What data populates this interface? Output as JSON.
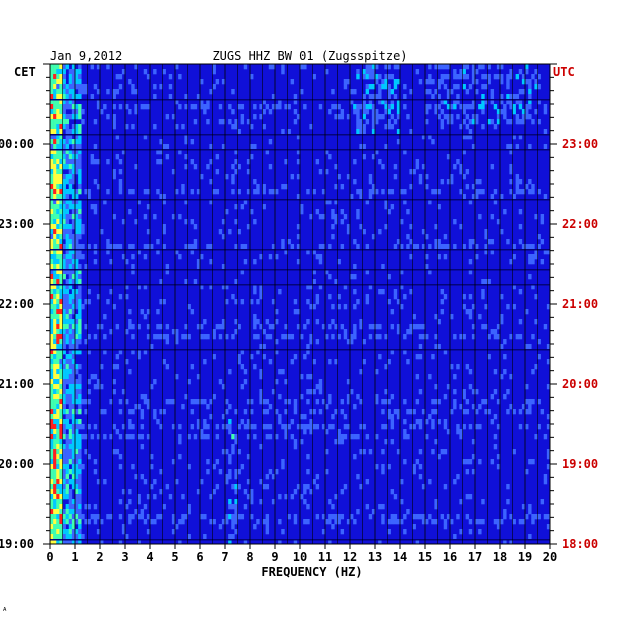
{
  "header": {
    "date": "Jan 9,2012",
    "station": "ZUGS HHZ BW 01 (Zugsspitze)",
    "left_tz": "CET",
    "right_tz": "UTC"
  },
  "footer": {
    "mark": "ᴬ"
  },
  "chart_data": {
    "type": "heatmap",
    "title": "ZUGS HHZ BW 01 (Zugsspitze)",
    "xlabel": "FREQUENCY (HZ)",
    "ylabel": "",
    "xlim": [
      0,
      20
    ],
    "xticks": [
      "0",
      "1",
      "2",
      "3",
      "4",
      "5",
      "6",
      "7",
      "8",
      "9",
      "10",
      "11",
      "12",
      "13",
      "14",
      "15",
      "16",
      "17",
      "18",
      "19",
      "20"
    ],
    "y_cet_ticks": [
      {
        "label": "00:00",
        "hour_from_top": 1
      },
      {
        "label": "23:00",
        "hour_from_top": 2
      },
      {
        "label": "22:00",
        "hour_from_top": 3
      },
      {
        "label": "21:00",
        "hour_from_top": 4
      },
      {
        "label": "20:00",
        "hour_from_top": 5
      },
      {
        "label": "19:00",
        "hour_from_top": 6
      }
    ],
    "y_utc_ticks": [
      {
        "label": "23:00",
        "hour_from_top": 1
      },
      {
        "label": "22:00",
        "hour_from_top": 2
      },
      {
        "label": "21:00",
        "hour_from_top": 3
      },
      {
        "label": "20:00",
        "hour_from_top": 4
      },
      {
        "label": "19:00",
        "hour_from_top": 5
      },
      {
        "label": "18:00",
        "hour_from_top": 6
      }
    ],
    "hours_span": 6,
    "minor_ticks_per_hour": 6,
    "grid": true,
    "colors": {
      "background": "#1010d8",
      "low": "#0a0aa0",
      "mid": "#3c64ff",
      "high": "#00c8ff",
      "peak_green": "#40ffb0",
      "peak_yellow": "#ffff40",
      "peak_red": "#ff2020",
      "grid": "#000000",
      "utc_label": "#cc0000"
    }
  }
}
